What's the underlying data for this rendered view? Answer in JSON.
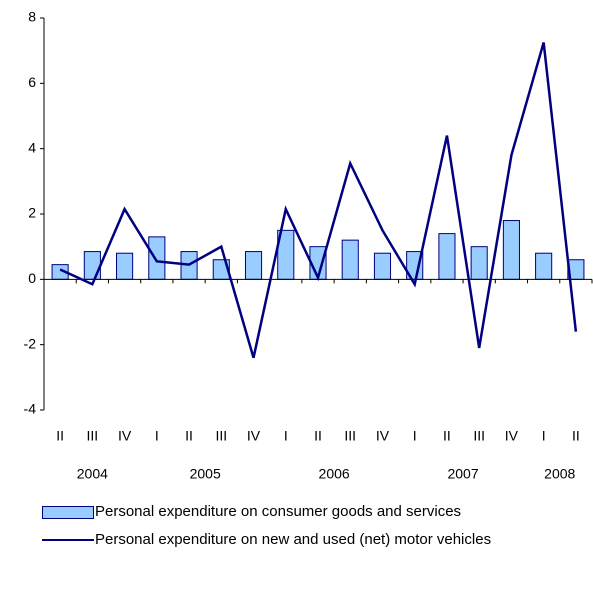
{
  "chart_data": {
    "type": "bar_line",
    "categories": [
      "II",
      "III",
      "IV",
      "I",
      "II",
      "III",
      "IV",
      "I",
      "II",
      "III",
      "IV",
      "I",
      "II",
      "III",
      "IV",
      "I",
      "II"
    ],
    "year_labels": [
      "2004",
      "2005",
      "2006",
      "2007",
      "2008"
    ],
    "series": [
      {
        "name": "Personal expenditure on consumer goods and services",
        "type": "bar",
        "color": "#99ccff",
        "values": [
          0.45,
          0.85,
          0.8,
          1.3,
          0.85,
          0.6,
          0.85,
          1.5,
          1.0,
          1.2,
          0.8,
          0.85,
          1.4,
          1.0,
          1.8,
          0.8,
          0.6
        ]
      },
      {
        "name": "Personal expenditure on new and used (net) motor vehicles",
        "type": "line",
        "color": "#000080",
        "values": [
          0.3,
          -0.15,
          2.15,
          0.55,
          0.45,
          1.0,
          -2.4,
          2.15,
          0.05,
          3.55,
          1.5,
          -0.15,
          4.4,
          -2.1,
          3.8,
          7.25,
          -1.6
        ]
      }
    ],
    "ylim": [
      -4,
      8
    ],
    "yticks": [
      -4,
      -2,
      0,
      2,
      4,
      6,
      8
    ]
  }
}
